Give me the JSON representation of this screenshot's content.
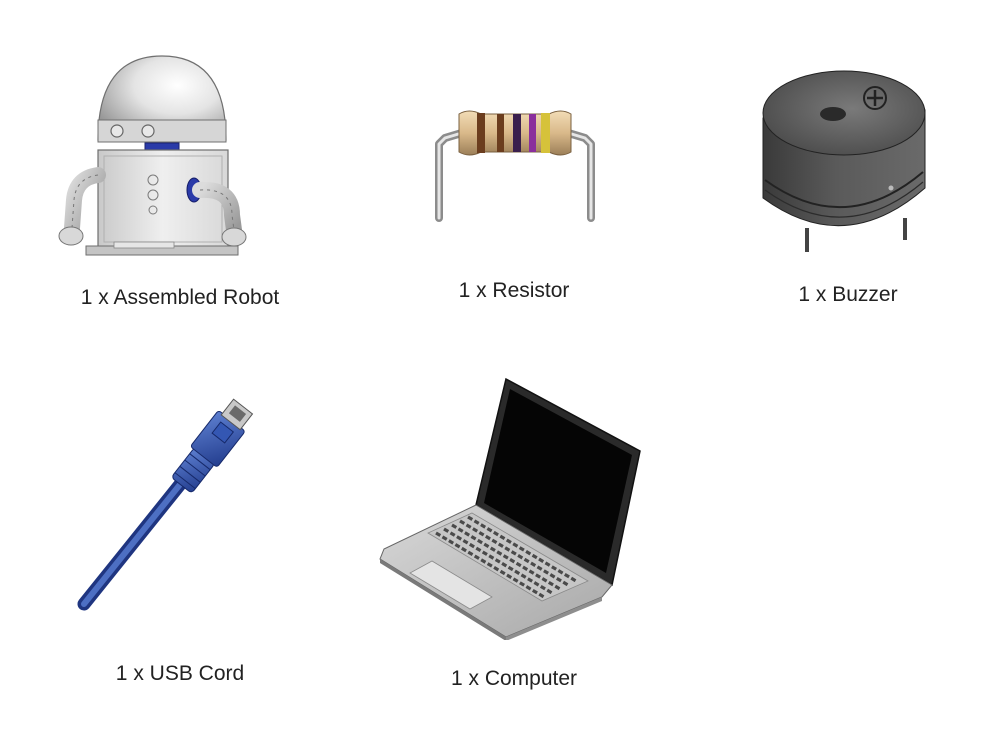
{
  "items": [
    {
      "caption": "1 x Assembled Robot",
      "icon": "robot-illustration"
    },
    {
      "caption": "1 x Resistor",
      "icon": "resistor-illustration"
    },
    {
      "caption": "1 x Buzzer",
      "icon": "buzzer-illustration"
    },
    {
      "caption": "1 x USB Cord",
      "icon": "usb-cord-illustration"
    },
    {
      "caption": "1 x Computer",
      "icon": "laptop-illustration"
    }
  ]
}
